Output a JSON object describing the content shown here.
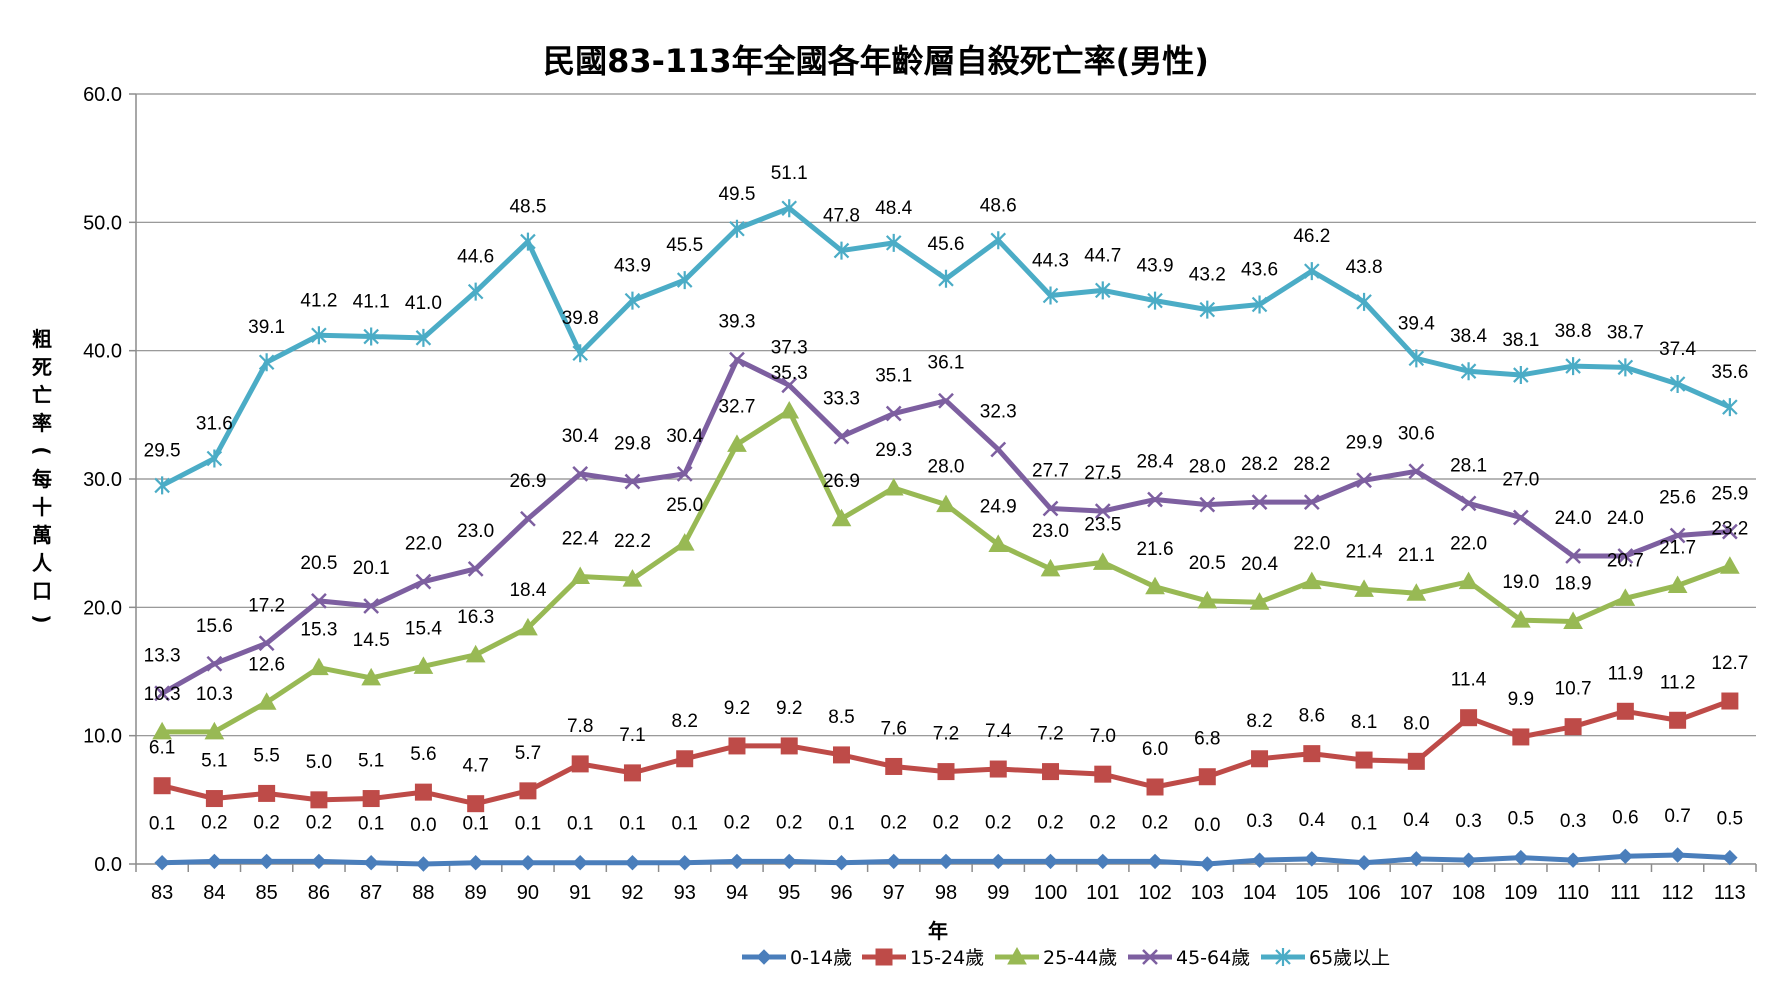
{
  "chart_data": {
    "type": "line",
    "title": "民國83-113年全國各年齡層自殺死亡率(男性)",
    "xlabel": "年",
    "ylabel": "粗死亡率(每十萬人口)",
    "ylabel_chars": [
      "粗",
      "死",
      "亡",
      "率",
      "(",
      "每",
      "十",
      "萬",
      "人",
      "口",
      ")"
    ],
    "ylim": [
      0,
      60
    ],
    "yticks": [
      "0.0",
      "10.0",
      "20.0",
      "30.0",
      "40.0",
      "50.0",
      "60.0"
    ],
    "yticks_values": [
      0,
      10,
      20,
      30,
      40,
      50,
      60
    ],
    "grid": true,
    "legend_position": "bottom",
    "categories": [
      "83",
      "84",
      "85",
      "86",
      "87",
      "88",
      "89",
      "90",
      "91",
      "92",
      "93",
      "94",
      "95",
      "96",
      "97",
      "98",
      "99",
      "100",
      "101",
      "102",
      "103",
      "104",
      "105",
      "106",
      "107",
      "108",
      "109",
      "110",
      "111",
      "112",
      "113"
    ],
    "series": [
      {
        "name": "0-14歲",
        "color": "#4a7ebb",
        "marker": "diamond",
        "values": [
          0.1,
          0.2,
          0.2,
          0.2,
          0.1,
          0.0,
          0.1,
          0.1,
          0.1,
          0.1,
          0.1,
          0.2,
          0.2,
          0.1,
          0.2,
          0.2,
          0.2,
          0.2,
          0.2,
          0.2,
          0.0,
          0.3,
          0.4,
          0.1,
          0.4,
          0.3,
          0.5,
          0.3,
          0.6,
          0.7,
          0.5
        ],
        "labels": [
          "0.1",
          "0.2",
          "0.2",
          "0.2",
          "0.1",
          "0.0",
          "0.1",
          "0.1",
          "0.1",
          "0.1",
          "0.1",
          "0.2",
          "0.2",
          "0.1",
          "0.2",
          "0.2",
          "0.2",
          "0.2",
          "0.2",
          "0.2",
          "0.0",
          "0.3",
          "0.4",
          "0.1",
          "0.4",
          "0.3",
          "0.5",
          "0.3",
          "0.6",
          "0.7",
          "0.5"
        ]
      },
      {
        "name": "15-24歲",
        "color": "#be4b48",
        "marker": "square",
        "values": [
          6.1,
          5.1,
          5.5,
          5.0,
          5.1,
          5.6,
          4.7,
          5.7,
          7.8,
          7.1,
          8.2,
          9.2,
          9.2,
          8.5,
          7.6,
          7.2,
          7.4,
          7.2,
          7.0,
          6.0,
          6.8,
          8.2,
          8.6,
          8.1,
          8.0,
          11.4,
          9.9,
          10.7,
          11.9,
          11.2,
          12.7
        ],
        "labels": [
          "6.1",
          "5.1",
          "5.5",
          "5.0",
          "5.1",
          "5.6",
          "4.7",
          "5.7",
          "7.8",
          "7.1",
          "8.2",
          "9.2",
          "9.2",
          "8.5",
          "7.6",
          "7.2",
          "7.4",
          "7.2",
          "7.0",
          "6.0",
          "6.8",
          "8.2",
          "8.6",
          "8.1",
          "8.0",
          "11.4",
          "9.9",
          "10.7",
          "11.9",
          "11.2",
          "12.7"
        ]
      },
      {
        "name": "25-44歲",
        "color": "#98b954",
        "marker": "triangle",
        "values": [
          10.3,
          10.3,
          12.6,
          15.3,
          14.5,
          15.4,
          16.3,
          18.4,
          22.4,
          22.2,
          25.0,
          32.7,
          35.3,
          26.9,
          29.3,
          28.0,
          24.9,
          23.0,
          23.5,
          21.6,
          20.5,
          20.4,
          22.0,
          21.4,
          21.1,
          22.0,
          19.0,
          18.9,
          20.7,
          21.7,
          23.2
        ],
        "labels": [
          "10.3",
          "10.3",
          "12.6",
          "15.3",
          "14.5",
          "15.4",
          "16.3",
          "18.4",
          "22.4",
          "22.2",
          "25.0",
          "32.7",
          "35.3",
          "26.9",
          "29.3",
          "28.0",
          "24.9",
          "23.0",
          "23.5",
          "21.6",
          "20.5",
          "20.4",
          "22.0",
          "21.4",
          "21.1",
          "22.0",
          "19.0",
          "18.9",
          "20.7",
          "21.7",
          "23.2"
        ]
      },
      {
        "name": "45-64歲",
        "color": "#7d5fa0",
        "marker": "x",
        "values": [
          13.3,
          15.6,
          17.2,
          20.5,
          20.1,
          22.0,
          23.0,
          26.9,
          30.4,
          29.8,
          30.4,
          39.3,
          37.3,
          33.3,
          35.1,
          36.1,
          32.3,
          27.7,
          27.5,
          28.4,
          28.0,
          28.2,
          28.2,
          29.9,
          30.6,
          28.1,
          27.0,
          24.0,
          24.0,
          25.6,
          25.9
        ],
        "labels": [
          "13.3",
          "15.6",
          "17.2",
          "20.5",
          "20.1",
          "22.0",
          "23.0",
          "26.9",
          "30.4",
          "29.8",
          "30.4",
          "39.3",
          "37.3",
          "33.3",
          "35.1",
          "36.1",
          "32.3",
          "27.7",
          "27.5",
          "28.4",
          "28.0",
          "28.2",
          "28.2",
          "29.9",
          "30.6",
          "28.1",
          "27.0",
          "24.0",
          "24.0",
          "25.6",
          "25.9"
        ]
      },
      {
        "name": "65歲以上",
        "color": "#4bacc6",
        "marker": "asterisk",
        "values": [
          29.5,
          31.6,
          39.1,
          41.2,
          41.1,
          41.0,
          44.6,
          48.5,
          39.8,
          43.9,
          45.5,
          49.5,
          51.1,
          47.8,
          48.4,
          45.6,
          48.6,
          44.3,
          44.7,
          43.9,
          43.2,
          43.6,
          46.2,
          43.8,
          39.4,
          38.4,
          38.1,
          38.8,
          38.7,
          37.4,
          35.6
        ],
        "labels": [
          "29.5",
          "31.6",
          "39.1",
          "41.2",
          "41.1",
          "41.0",
          "44.6",
          "48.5",
          "39.8",
          "43.9",
          "45.5",
          "49.5",
          "51.1",
          "47.8",
          "48.4",
          "45.6",
          "48.6",
          "44.3",
          "44.7",
          "43.9",
          "43.2",
          "43.6",
          "46.2",
          "43.8",
          "39.4",
          "38.4",
          "38.1",
          "38.8",
          "38.7",
          "37.4",
          "35.6"
        ]
      }
    ]
  }
}
